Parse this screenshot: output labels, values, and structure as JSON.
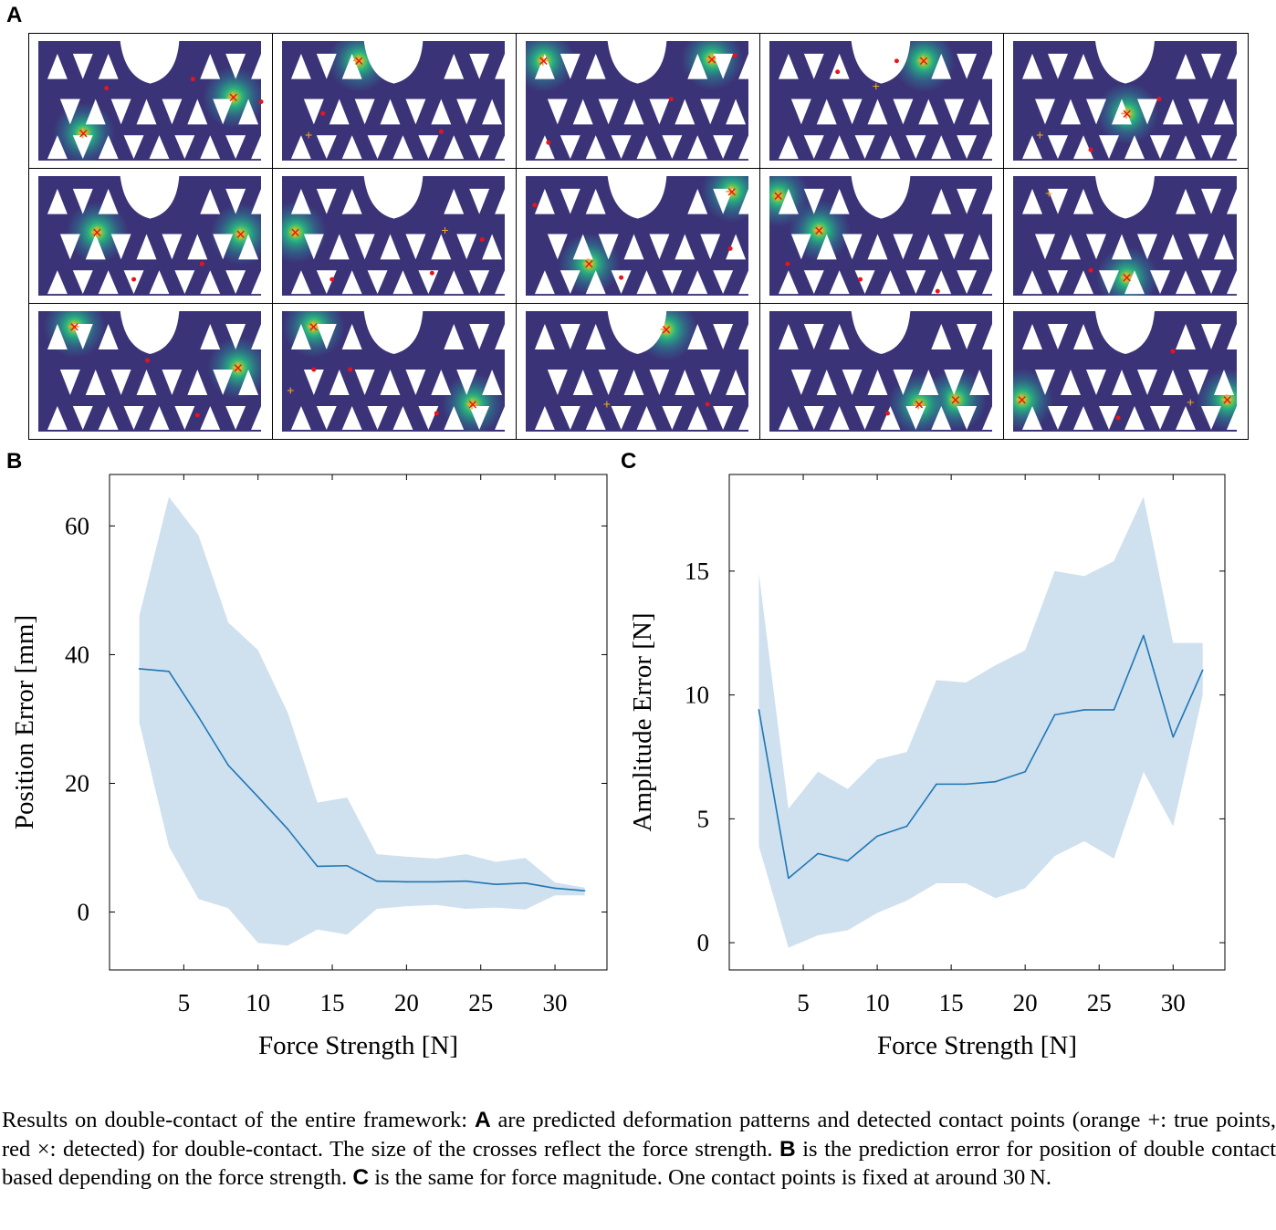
{
  "panel_labels": {
    "a": "A",
    "b": "B",
    "c": "C"
  },
  "figure_a": {
    "colors": {
      "background": "#43156a",
      "mid": "#2f6c8e",
      "high": "#27ad81",
      "peak": "#c8e020",
      "true_marker": "#f5a623",
      "detected_marker": "#e8141a"
    }
  },
  "chart_data": [
    {
      "type": "line",
      "panel": "B",
      "xlabel": "Force Strength [N]",
      "ylabel": "Position Error [mm]",
      "xlim": [
        0,
        33.5
      ],
      "ylim": [
        -9,
        68
      ],
      "xticks": [
        5,
        10,
        15,
        20,
        25,
        30
      ],
      "yticks": [
        0,
        20,
        40,
        60
      ],
      "line_color": "#1f77b4",
      "band_color": "#cfe0ef",
      "x": [
        2,
        4,
        6,
        8,
        10,
        12,
        14,
        16,
        18,
        20,
        22,
        24,
        26,
        28,
        30,
        32
      ],
      "mean": [
        37.8,
        37.4,
        30.3,
        22.8,
        17.9,
        12.9,
        7.1,
        7.2,
        4.8,
        4.7,
        4.7,
        4.8,
        4.3,
        4.5,
        3.7,
        3.3
      ],
      "upper": [
        46.0,
        64.5,
        58.5,
        45.0,
        40.7,
        31.0,
        17.0,
        17.8,
        9.0,
        8.6,
        8.3,
        9.0,
        7.8,
        8.4,
        4.6,
        3.8
      ],
      "lower": [
        29.5,
        10.2,
        2.0,
        0.6,
        -4.8,
        -5.2,
        -2.7,
        -3.5,
        0.5,
        0.9,
        1.1,
        0.5,
        0.7,
        0.4,
        2.6,
        2.6
      ]
    },
    {
      "type": "line",
      "panel": "C",
      "xlabel": "Force Strength [N]",
      "ylabel": "Amplitude Error [N]",
      "xlim": [
        0,
        33.5
      ],
      "ylim": [
        -1.1,
        18.9
      ],
      "xticks": [
        5,
        10,
        15,
        20,
        25,
        30
      ],
      "yticks": [
        0,
        5,
        10,
        15
      ],
      "line_color": "#1f77b4",
      "band_color": "#cfe0ef",
      "x": [
        2,
        4,
        6,
        8,
        10,
        12,
        14,
        16,
        18,
        20,
        22,
        24,
        26,
        28,
        30,
        32
      ],
      "mean": [
        9.4,
        2.6,
        3.6,
        3.3,
        4.3,
        4.7,
        6.4,
        6.4,
        6.5,
        6.9,
        9.2,
        9.4,
        9.4,
        12.4,
        8.3,
        11.0
      ],
      "upper": [
        14.9,
        5.4,
        6.9,
        6.2,
        7.4,
        7.7,
        10.6,
        10.5,
        11.2,
        11.8,
        15.0,
        14.8,
        15.4,
        18.0,
        12.1,
        12.1
      ],
      "lower": [
        3.9,
        -0.2,
        0.3,
        0.5,
        1.2,
        1.7,
        2.4,
        2.4,
        1.8,
        2.2,
        3.5,
        4.1,
        3.4,
        6.9,
        4.7,
        10.0
      ]
    }
  ],
  "caption": {
    "pre": "Results on double-contact of the entire framework: ",
    "label_a": "A",
    "mid_a": " are predicted deformation patterns and detected contact points (orange +: true points, red ×: detected) for double-contact. The size of the crosses reflect the force strength. ",
    "label_b": "B",
    "mid_b": " is the prediction error for position of double contact based depending on the force strength. ",
    "label_c": "C",
    "mid_c": " is the same for force magnitude. One contact points is fixed at around 30 N."
  }
}
